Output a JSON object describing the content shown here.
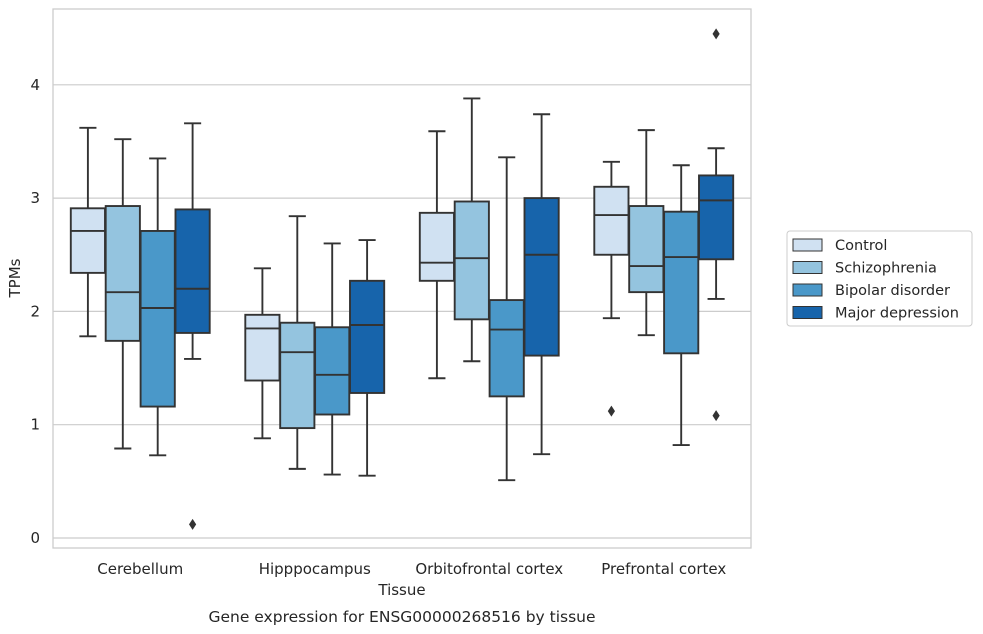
{
  "chart_data": {
    "type": "box",
    "title": "",
    "caption": "Gene expression for ENSG00000268516 by tissue",
    "xlabel": "Tissue",
    "ylabel": "TPMs",
    "ylim": [
      -0.08,
      4.68
    ],
    "yticks": [
      0,
      1,
      2,
      3,
      4
    ],
    "grid": "y",
    "legend_position": "right",
    "categories": [
      "Cerebellum",
      "Hipppocampus",
      "Orbitofrontal cortex",
      "Prefrontal cortex"
    ],
    "series": [
      {
        "name": "Control",
        "color": "#d0e1f2",
        "boxes": [
          {
            "whislo": 1.78,
            "q1": 2.34,
            "med": 2.71,
            "q3": 2.91,
            "whishi": 3.62,
            "fliers": []
          },
          {
            "whislo": 0.88,
            "q1": 1.39,
            "med": 1.85,
            "q3": 1.97,
            "whishi": 2.38,
            "fliers": []
          },
          {
            "whislo": 1.41,
            "q1": 2.27,
            "med": 2.43,
            "q3": 2.87,
            "whishi": 3.59,
            "fliers": []
          },
          {
            "whislo": 1.94,
            "q1": 2.5,
            "med": 2.85,
            "q3": 3.1,
            "whishi": 3.32,
            "fliers": [
              1.12
            ]
          }
        ]
      },
      {
        "name": "Schizophrenia",
        "color": "#94c4df",
        "boxes": [
          {
            "whislo": 0.79,
            "q1": 1.74,
            "med": 2.17,
            "q3": 2.93,
            "whishi": 3.52,
            "fliers": []
          },
          {
            "whislo": 0.61,
            "q1": 0.97,
            "med": 1.64,
            "q3": 1.9,
            "whishi": 2.84,
            "fliers": []
          },
          {
            "whislo": 1.56,
            "q1": 1.93,
            "med": 2.47,
            "q3": 2.97,
            "whishi": 3.88,
            "fliers": []
          },
          {
            "whislo": 1.79,
            "q1": 2.17,
            "med": 2.4,
            "q3": 2.93,
            "whishi": 3.6,
            "fliers": []
          }
        ]
      },
      {
        "name": "Bipolar disorder",
        "color": "#4a98c9",
        "boxes": [
          {
            "whislo": 0.73,
            "q1": 1.16,
            "med": 2.03,
            "q3": 2.71,
            "whishi": 3.35,
            "fliers": []
          },
          {
            "whislo": 0.56,
            "q1": 1.09,
            "med": 1.44,
            "q3": 1.86,
            "whishi": 2.6,
            "fliers": []
          },
          {
            "whislo": 0.51,
            "q1": 1.25,
            "med": 1.84,
            "q3": 2.1,
            "whishi": 3.36,
            "fliers": []
          },
          {
            "whislo": 0.82,
            "q1": 1.63,
            "med": 2.48,
            "q3": 2.88,
            "whishi": 3.29,
            "fliers": []
          }
        ]
      },
      {
        "name": "Major depression",
        "color": "#1764ab",
        "boxes": [
          {
            "whislo": 1.58,
            "q1": 1.81,
            "med": 2.2,
            "q3": 2.9,
            "whishi": 3.66,
            "fliers": [
              0.12
            ]
          },
          {
            "whislo": 0.55,
            "q1": 1.28,
            "med": 1.88,
            "q3": 2.27,
            "whishi": 2.63,
            "fliers": []
          },
          {
            "whislo": 0.74,
            "q1": 1.61,
            "med": 2.5,
            "q3": 3.0,
            "whishi": 3.74,
            "fliers": []
          },
          {
            "whislo": 2.11,
            "q1": 2.46,
            "med": 2.98,
            "q3": 3.2,
            "whishi": 3.44,
            "fliers": [
              1.08,
              4.45
            ]
          }
        ]
      }
    ]
  },
  "colors": {
    "grid": "#cccccc",
    "frame": "#cccccc",
    "line": "#333333",
    "text": "#262626"
  }
}
